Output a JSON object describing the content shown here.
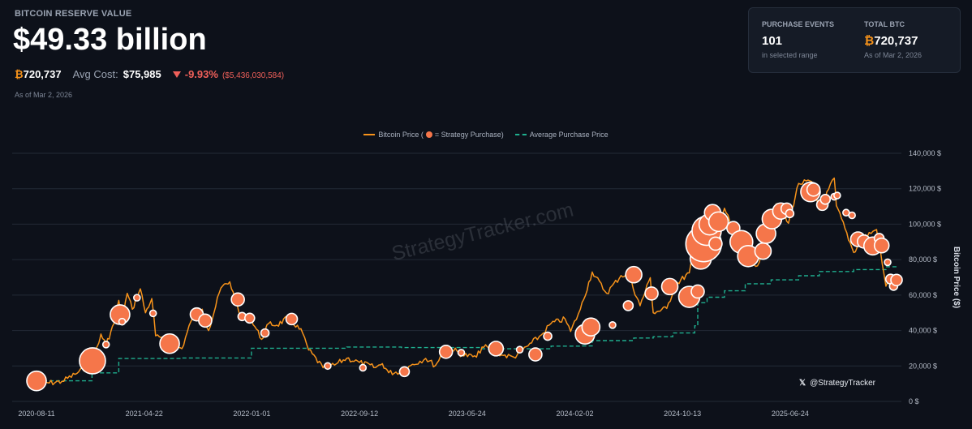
{
  "header": {
    "label": "BITCOIN RESERVE VALUE",
    "value": "$49.33 billion",
    "btc_symbol": "₿",
    "btc_held": "720,737",
    "avg_cost_label": "Avg Cost:",
    "avg_cost": "$75,985",
    "change_pct": "-9.93%",
    "change_abs": "($5,436,030,584)",
    "as_of": "As of Mar 2, 2026"
  },
  "stats": {
    "purchase_events": {
      "label": "PURCHASE EVENTS",
      "value": "101",
      "sub": "in selected range"
    },
    "total_btc": {
      "label": "TOTAL BTC",
      "symbol": "₿",
      "value": "720,737",
      "sub": "As of Mar 2, 2026"
    }
  },
  "legend": {
    "price_prefix": "Bitcoin Price (",
    "price_suffix": " = Strategy Purchase)",
    "avg": "Average Purchase Price"
  },
  "watermark": "StrategyTracker.com",
  "credit": {
    "icon": "x-logo-icon",
    "glyph": "𝕏",
    "handle": "@StrategyTracker"
  },
  "colors": {
    "price": "#f7931a",
    "purchase": "#f5764a",
    "average": "#1fae8e",
    "negative": "#f0605a"
  },
  "chart_data": {
    "type": "line",
    "ylabel": "Bitcoin Price ($)",
    "ylim": [
      0,
      140000
    ],
    "y_ticks": [
      0,
      20000,
      40000,
      60000,
      80000,
      100000,
      120000,
      140000
    ],
    "y_tick_labels": [
      "0 $",
      "20,000 $",
      "40,000 $",
      "60,000 $",
      "80,000 $",
      "100,000 $",
      "120,000 $",
      "140,000 $"
    ],
    "x_ticks": [
      "2020-08-11",
      "2021-04-22",
      "2022-01-01",
      "2022-09-12",
      "2023-05-24",
      "2024-02-02",
      "2024-10-13",
      "2025-06-24"
    ],
    "grid": true,
    "legend_position": "top",
    "series": [
      {
        "name": "Bitcoin Price",
        "type": "line",
        "points": [
          [
            "2020-08-11",
            11600
          ],
          [
            "2020-09-10",
            10400
          ],
          [
            "2020-10-10",
            11300
          ],
          [
            "2020-11-10",
            15300
          ],
          [
            "2020-12-05",
            19200
          ],
          [
            "2020-12-20",
            23500
          ],
          [
            "2021-01-05",
            33000
          ],
          [
            "2021-01-10",
            38000
          ],
          [
            "2021-01-22",
            32000
          ],
          [
            "2021-02-10",
            44000
          ],
          [
            "2021-02-21",
            57000
          ],
          [
            "2021-02-28",
            45000
          ],
          [
            "2021-03-13",
            61000
          ],
          [
            "2021-03-25",
            52000
          ],
          [
            "2021-04-13",
            63500
          ],
          [
            "2021-04-25",
            50000
          ],
          [
            "2021-05-10",
            58000
          ],
          [
            "2021-05-19",
            37000
          ],
          [
            "2021-06-01",
            36000
          ],
          [
            "2021-06-22",
            32000
          ],
          [
            "2021-07-20",
            29800
          ],
          [
            "2021-08-10",
            45000
          ],
          [
            "2021-09-06",
            52000
          ],
          [
            "2021-09-21",
            40000
          ],
          [
            "2021-10-20",
            64000
          ],
          [
            "2021-11-10",
            67500
          ],
          [
            "2021-12-04",
            48000
          ],
          [
            "2021-12-31",
            46300
          ],
          [
            "2022-01-24",
            35000
          ],
          [
            "2022-02-10",
            44000
          ],
          [
            "2022-03-01",
            43000
          ],
          [
            "2022-03-29",
            47500
          ],
          [
            "2022-05-01",
            38500
          ],
          [
            "2022-05-15",
            29000
          ],
          [
            "2022-06-18",
            19000
          ],
          [
            "2022-07-15",
            20500
          ],
          [
            "2022-08-13",
            24400
          ],
          [
            "2022-09-12",
            22000
          ],
          [
            "2022-10-20",
            19100
          ],
          [
            "2022-11-05",
            21300
          ],
          [
            "2022-11-20",
            16200
          ],
          [
            "2022-12-20",
            16800
          ],
          [
            "2023-01-15",
            20900
          ],
          [
            "2023-02-15",
            24300
          ],
          [
            "2023-03-10",
            20200
          ],
          [
            "2023-03-30",
            28400
          ],
          [
            "2023-04-14",
            30400
          ],
          [
            "2023-05-12",
            26300
          ],
          [
            "2023-06-15",
            25000
          ],
          [
            "2023-06-28",
            30700
          ],
          [
            "2023-07-15",
            30300
          ],
          [
            "2023-08-17",
            26000
          ],
          [
            "2023-09-11",
            25000
          ],
          [
            "2023-10-23",
            33000
          ],
          [
            "2023-11-15",
            37500
          ],
          [
            "2023-12-08",
            44000
          ],
          [
            "2024-01-10",
            46500
          ],
          [
            "2024-01-23",
            39500
          ],
          [
            "2024-02-15",
            52000
          ],
          [
            "2024-03-14",
            73000
          ],
          [
            "2024-04-17",
            61000
          ],
          [
            "2024-05-21",
            71000
          ],
          [
            "2024-06-07",
            71500
          ],
          [
            "2024-07-05",
            54000
          ],
          [
            "2024-07-29",
            69800
          ],
          [
            "2024-08-05",
            50000
          ],
          [
            "2024-09-06",
            52500
          ],
          [
            "2024-09-27",
            66000
          ],
          [
            "2024-10-29",
            72500
          ],
          [
            "2024-11-13",
            90000
          ],
          [
            "2024-11-22",
            99000
          ],
          [
            "2024-12-17",
            107500
          ],
          [
            "2024-12-30",
            92000
          ],
          [
            "2025-01-20",
            109000
          ],
          [
            "2025-02-10",
            97000
          ],
          [
            "2025-03-10",
            78000
          ],
          [
            "2025-04-08",
            76500
          ],
          [
            "2025-05-10",
            103000
          ],
          [
            "2025-05-22",
            111500
          ],
          [
            "2025-06-20",
            100500
          ],
          [
            "2025-07-14",
            123000
          ],
          [
            "2025-08-14",
            124000
          ],
          [
            "2025-09-01",
            108000
          ],
          [
            "2025-10-06",
            126000
          ],
          [
            "2025-10-11",
            110500
          ],
          [
            "2025-11-21",
            84000
          ],
          [
            "2025-12-10",
            92000
          ],
          [
            "2026-01-14",
            97000
          ],
          [
            "2026-02-05",
            65000
          ],
          [
            "2026-02-15",
            69000
          ],
          [
            "2026-03-02",
            66000
          ]
        ]
      },
      {
        "name": "Average Purchase Price",
        "type": "step",
        "points": [
          [
            "2020-08-11",
            11600
          ],
          [
            "2020-12-20",
            16100
          ],
          [
            "2021-02-21",
            24200
          ],
          [
            "2021-07-20",
            24500
          ],
          [
            "2021-12-31",
            30000
          ],
          [
            "2022-08-13",
            30700
          ],
          [
            "2022-12-20",
            30400
          ],
          [
            "2023-06-28",
            29700
          ],
          [
            "2023-12-08",
            31200
          ],
          [
            "2024-02-20",
            31300
          ],
          [
            "2024-03-14",
            34300
          ],
          [
            "2024-06-20",
            35800
          ],
          [
            "2024-08-05",
            36500
          ],
          [
            "2024-09-20",
            38600
          ],
          [
            "2024-11-11",
            42700
          ],
          [
            "2024-11-18",
            55700
          ],
          [
            "2024-12-10",
            58800
          ],
          [
            "2025-01-20",
            62400
          ],
          [
            "2025-03-10",
            66400
          ],
          [
            "2025-05-10",
            68600
          ],
          [
            "2025-07-14",
            70900
          ],
          [
            "2025-09-01",
            73300
          ],
          [
            "2025-11-21",
            74400
          ],
          [
            "2026-02-05",
            76000
          ],
          [
            "2026-03-02",
            75985
          ]
        ]
      },
      {
        "name": "Strategy Purchase",
        "type": "bubble",
        "points": [
          [
            "2020-08-11",
            11600,
            12
          ],
          [
            "2020-12-21",
            22900,
            16
          ],
          [
            "2021-01-22",
            32100,
            4
          ],
          [
            "2021-02-24",
            49000,
            12
          ],
          [
            "2021-03-01",
            45000,
            4
          ],
          [
            "2021-04-05",
            58500,
            4
          ],
          [
            "2021-05-13",
            49700,
            4
          ],
          [
            "2021-06-21",
            32600,
            12
          ],
          [
            "2021-08-24",
            49100,
            8
          ],
          [
            "2021-09-13",
            45600,
            8
          ],
          [
            "2021-11-29",
            57500,
            8
          ],
          [
            "2021-12-09",
            47900,
            5
          ],
          [
            "2021-12-27",
            47000,
            6
          ],
          [
            "2022-02-01",
            38600,
            5
          ],
          [
            "2022-04-05",
            46500,
            7
          ],
          [
            "2022-06-29",
            20000,
            4
          ],
          [
            "2022-09-20",
            19000,
            4
          ],
          [
            "2022-12-27",
            16800,
            6
          ],
          [
            "2023-04-04",
            28000,
            8
          ],
          [
            "2023-05-10",
            27500,
            4
          ],
          [
            "2023-07-31",
            29800,
            9
          ],
          [
            "2023-09-25",
            29200,
            4
          ],
          [
            "2023-11-01",
            26500,
            8
          ],
          [
            "2023-11-30",
            36800,
            5
          ],
          [
            "2024-02-26",
            37900,
            12
          ],
          [
            "2024-03-11",
            42000,
            11
          ],
          [
            "2024-05-01",
            43100,
            4
          ],
          [
            "2024-06-07",
            54000,
            6
          ],
          [
            "2024-06-20",
            71500,
            10
          ],
          [
            "2024-08-01",
            60900,
            8
          ],
          [
            "2024-09-13",
            64800,
            10
          ],
          [
            "2024-10-29",
            59000,
            13
          ],
          [
            "2024-11-18",
            62000,
            8
          ],
          [
            "2024-11-25",
            80600,
            13
          ],
          [
            "2024-12-02",
            88900,
            22
          ],
          [
            "2024-12-09",
            96300,
            18
          ],
          [
            "2024-12-16",
            99900,
            13
          ],
          [
            "2024-12-23",
            106500,
            10
          ],
          [
            "2024-12-30",
            89000,
            8
          ],
          [
            "2025-01-06",
            101400,
            12
          ],
          [
            "2025-02-10",
            97800,
            8
          ],
          [
            "2025-03-01",
            90000,
            14
          ],
          [
            "2025-03-17",
            82000,
            13
          ],
          [
            "2025-04-21",
            84800,
            10
          ],
          [
            "2025-04-28",
            94700,
            12
          ],
          [
            "2025-05-12",
            102900,
            12
          ],
          [
            "2025-06-02",
            107400,
            10
          ],
          [
            "2025-06-16",
            108700,
            7
          ],
          [
            "2025-06-23",
            106000,
            5
          ],
          [
            "2025-08-11",
            118200,
            12
          ],
          [
            "2025-08-18",
            119500,
            8
          ],
          [
            "2025-09-08",
            111000,
            7
          ],
          [
            "2025-09-15",
            114000,
            6
          ],
          [
            "2025-10-06",
            115500,
            4
          ],
          [
            "2025-10-13",
            116200,
            4
          ],
          [
            "2025-11-03",
            106500,
            4
          ],
          [
            "2025-11-17",
            105000,
            4
          ],
          [
            "2025-12-01",
            91500,
            9
          ],
          [
            "2025-12-15",
            90200,
            8
          ],
          [
            "2026-01-05",
            87700,
            11
          ],
          [
            "2026-01-20",
            92000,
            6
          ],
          [
            "2026-01-26",
            88000,
            9
          ],
          [
            "2026-02-09",
            78500,
            4
          ],
          [
            "2026-02-16",
            69000,
            6
          ],
          [
            "2026-02-23",
            65000,
            5
          ],
          [
            "2026-03-02",
            68500,
            7
          ]
        ]
      }
    ]
  }
}
